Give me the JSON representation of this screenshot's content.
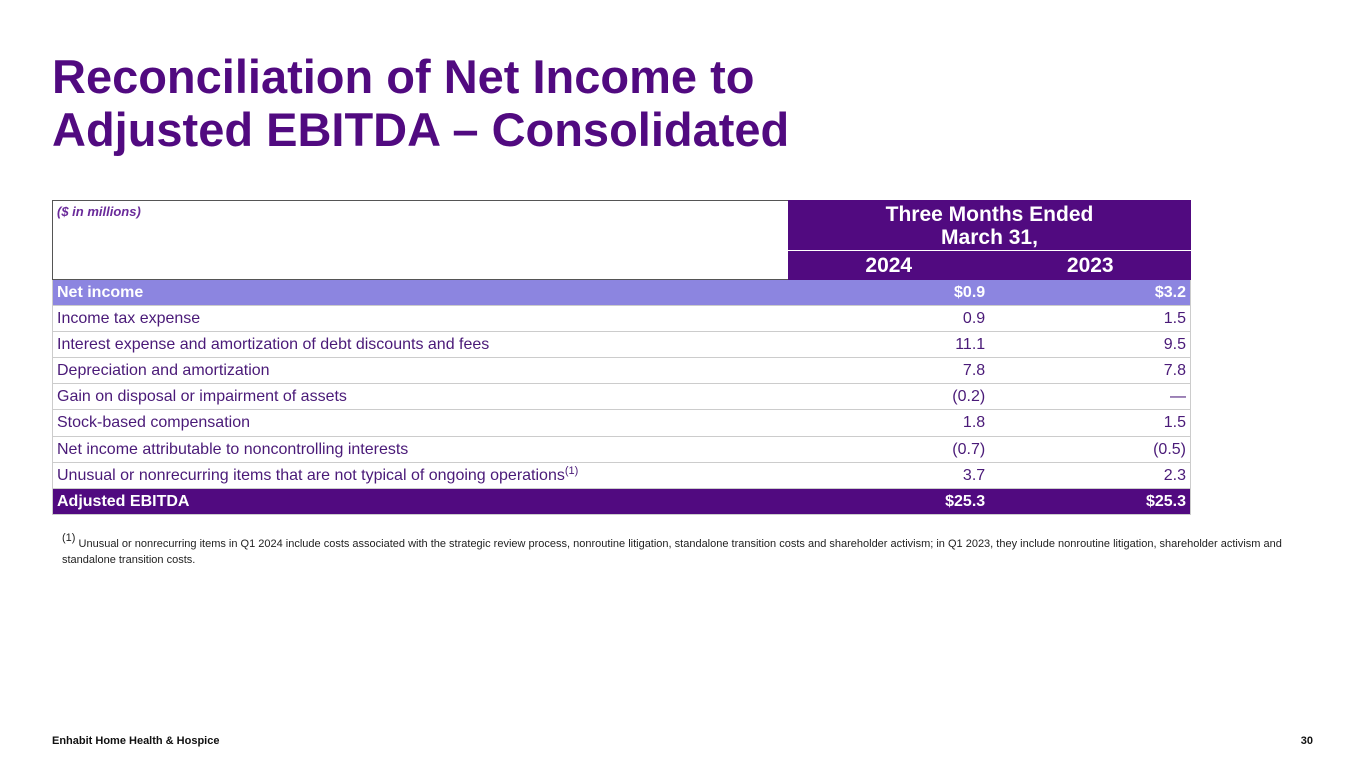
{
  "header": {
    "title_lines": [
      "Reconciliation of Net Income to",
      "Adjusted EBITDA – Consolidated"
    ]
  },
  "table": {
    "note": "($ in millions)",
    "period_lines": [
      "Three Months Ended",
      "March 31,"
    ],
    "columns": [
      "2024",
      "2023"
    ],
    "rows": [
      {
        "label": "Net income",
        "values": [
          "$0.9",
          "$3.2"
        ]
      },
      {
        "label": "Income tax expense",
        "values": [
          "0.9",
          "1.5"
        ]
      },
      {
        "label": "Interest expense and amortization of debt discounts and fees",
        "values": [
          "11.1",
          "9.5"
        ]
      },
      {
        "label": "Depreciation and amortization",
        "values": [
          "7.8",
          "7.8"
        ]
      },
      {
        "label": "Gain on disposal or impairment of assets",
        "values": [
          "(0.2)",
          "—"
        ]
      },
      {
        "label": "Stock-based compensation",
        "values": [
          "1.8",
          "1.5"
        ]
      },
      {
        "label": "Net income attributable to noncontrolling interests",
        "values": [
          "(0.7)",
          "(0.5)"
        ]
      },
      {
        "label": "Unusual or nonrecurring items that are not typical of ongoing operations",
        "note": "(1)",
        "values": [
          "3.7",
          "2.3"
        ]
      },
      {
        "label": "Adjusted EBITDA",
        "values": [
          "$25.3",
          "$25.3"
        ]
      }
    ]
  },
  "footnote": {
    "marker": "(1)",
    "text": "Unusual or nonrecurring items in Q1 2024 include costs associated with the strategic review process, nonroutine litigation, standalone transition costs and shareholder activism; in Q1 2023, they include nonroutine litigation, shareholder activism and standalone transition costs."
  },
  "footer": {
    "company": "Enhabit Home Health & Hospice",
    "page": "30"
  }
}
